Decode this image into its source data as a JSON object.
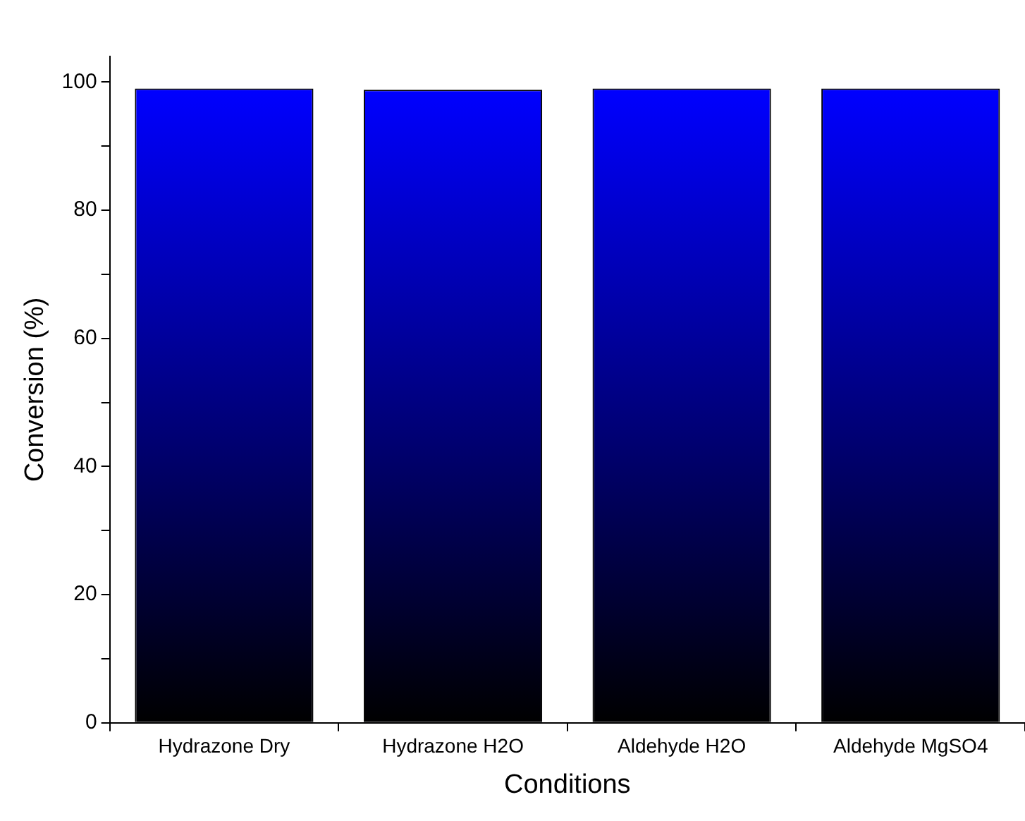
{
  "chart_data": {
    "type": "bar",
    "xlabel": "Conditions",
    "ylabel": "Conversion (%)",
    "categories": [
      "Hydrazone Dry",
      "Hydrazone H2O",
      "Aldehyde H2O",
      "Aldehyde MgSO4"
    ],
    "values": [
      99,
      98.8,
      99,
      99
    ],
    "color": "#0000ff",
    "ylim": [
      0,
      104
    ],
    "yticks": [
      0,
      {
        "value": 10,
        "label": null
      },
      20,
      {
        "value": 30,
        "label": null
      },
      40,
      {
        "value": 50,
        "label": null
      },
      60,
      {
        "value": 70,
        "label": null
      },
      80,
      {
        "value": 90,
        "label": null
      },
      100
    ],
    "grid": false,
    "legend": false
  }
}
